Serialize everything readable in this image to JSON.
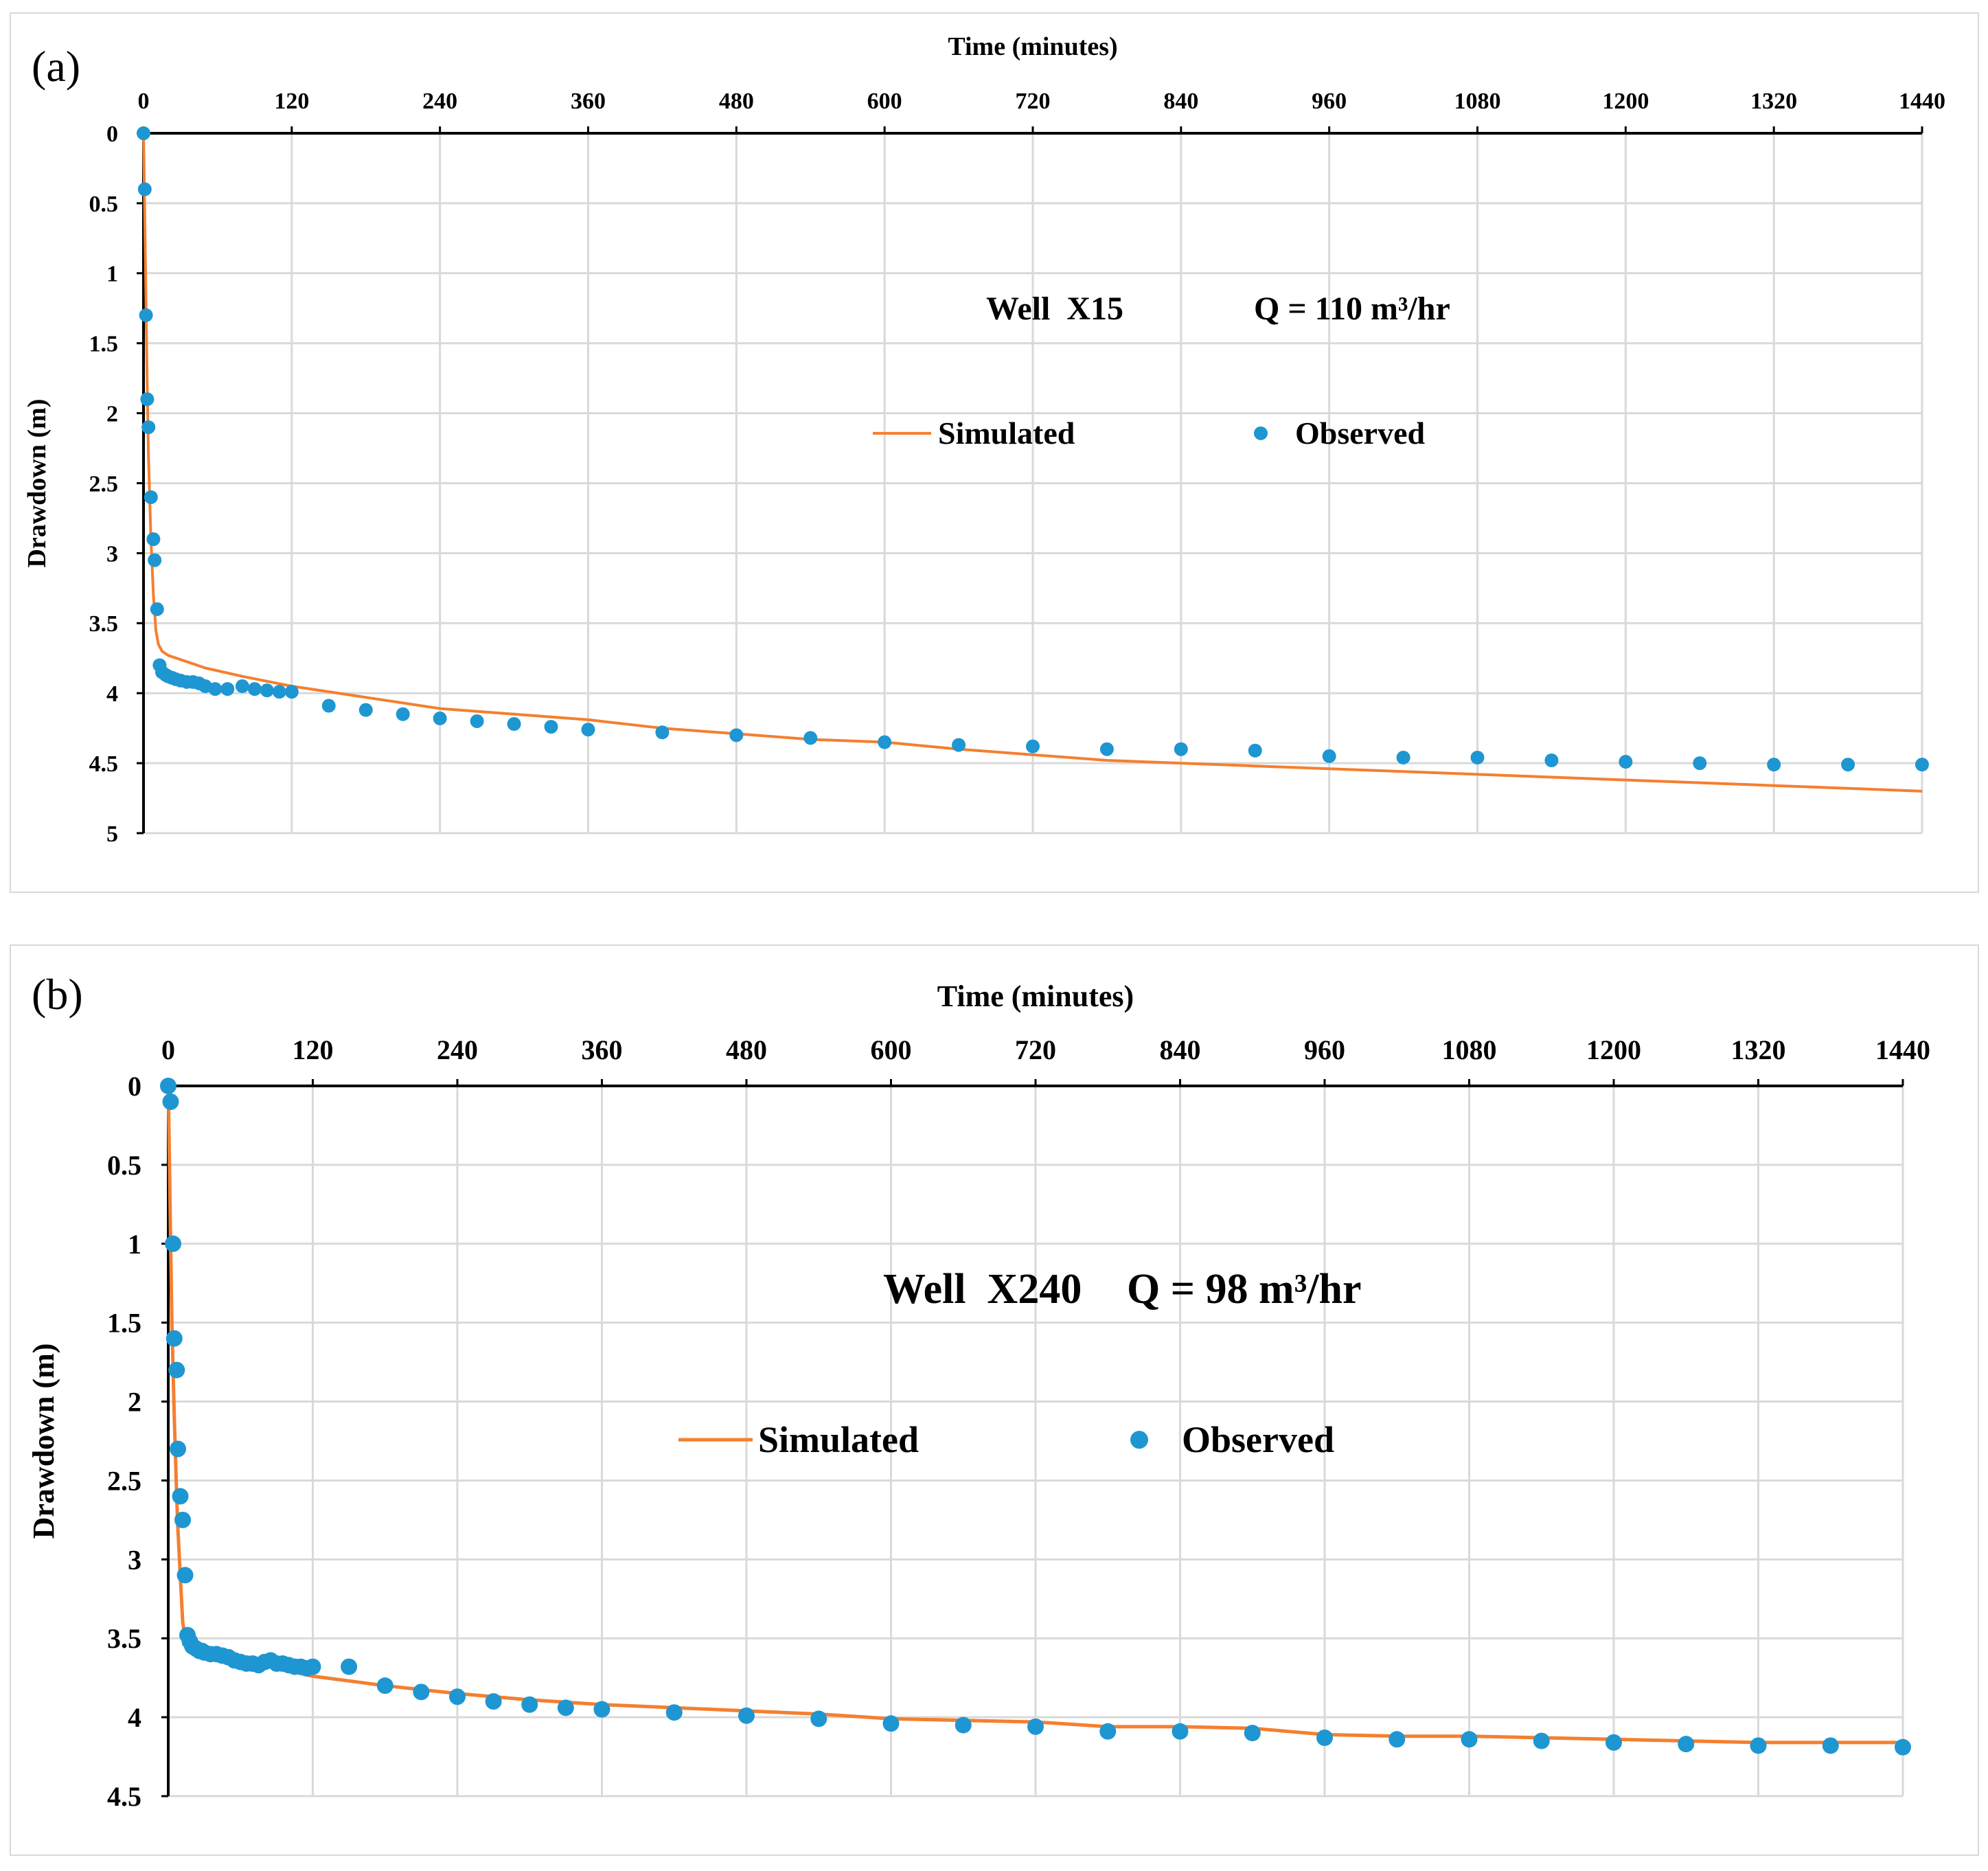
{
  "colors": {
    "simulated": "#f47f2f",
    "observed": "#1e96d2",
    "grid": "#d9d9d9",
    "axis": "#000000"
  },
  "chart_data": [
    {
      "id": "a",
      "panel_label": "(a)",
      "type": "line+scatter",
      "title": "",
      "xlabel": "Time (minutes)",
      "ylabel": "Drawdown (m)",
      "xlim": [
        0,
        1440
      ],
      "ylim": [
        0,
        5
      ],
      "x_ticks": [
        0,
        120,
        240,
        360,
        480,
        600,
        720,
        840,
        960,
        1080,
        1200,
        1320,
        1440
      ],
      "y_ticks": [
        0,
        0.5,
        1,
        1.5,
        2,
        2.5,
        3,
        3.5,
        4,
        4.5,
        5
      ],
      "y_tick_labels": [
        "0",
        "0.5",
        "1",
        "1.5",
        "2",
        "2.5",
        "3",
        "3.5",
        "4",
        "4.5",
        "5"
      ],
      "x_axis_position": "top",
      "y_axis_inverted": true,
      "grid": true,
      "annotation": {
        "well": "Well  X15",
        "discharge": "Q = 110 m³/hr"
      },
      "legend": {
        "position": "center",
        "entries": [
          "Simulated",
          "Observed"
        ]
      },
      "series": [
        {
          "name": "Simulated",
          "style": "line",
          "x": [
            0,
            1,
            2,
            3,
            4,
            6,
            8,
            10,
            12,
            15,
            20,
            30,
            50,
            80,
            120,
            180,
            240,
            300,
            360,
            420,
            480,
            540,
            600,
            660,
            720,
            780,
            840,
            900,
            960,
            1020,
            1080,
            1140,
            1200,
            1260,
            1320,
            1380,
            1440
          ],
          "y": [
            0,
            0.6,
            1.2,
            1.8,
            2.3,
            2.9,
            3.3,
            3.55,
            3.65,
            3.7,
            3.73,
            3.76,
            3.82,
            3.88,
            3.95,
            4.03,
            4.11,
            4.15,
            4.19,
            4.25,
            4.29,
            4.33,
            4.35,
            4.4,
            4.44,
            4.48,
            4.5,
            4.52,
            4.54,
            4.56,
            4.58,
            4.6,
            4.62,
            4.64,
            4.66,
            4.68,
            4.7
          ]
        },
        {
          "name": "Observed",
          "style": "scatter",
          "x": [
            0,
            1,
            2,
            3,
            4,
            6,
            8,
            9,
            11,
            13,
            15,
            18,
            20,
            23,
            26,
            30,
            35,
            40,
            45,
            50,
            58,
            68,
            80,
            90,
            100,
            110,
            120,
            150,
            180,
            210,
            240,
            270,
            300,
            330,
            360,
            420,
            480,
            540,
            600,
            660,
            720,
            780,
            840,
            900,
            960,
            1020,
            1080,
            1140,
            1200,
            1260,
            1320,
            1380,
            1440
          ],
          "y": [
            0,
            0.4,
            1.3,
            1.9,
            2.1,
            2.6,
            2.9,
            3.05,
            3.4,
            3.8,
            3.85,
            3.87,
            3.88,
            3.89,
            3.9,
            3.91,
            3.92,
            3.92,
            3.93,
            3.95,
            3.97,
            3.97,
            3.95,
            3.97,
            3.98,
            3.99,
            3.99,
            4.09,
            4.12,
            4.15,
            4.18,
            4.2,
            4.22,
            4.24,
            4.26,
            4.28,
            4.3,
            4.32,
            4.35,
            4.37,
            4.38,
            4.4,
            4.4,
            4.41,
            4.45,
            4.46,
            4.46,
            4.48,
            4.49,
            4.5,
            4.51,
            4.51,
            4.51
          ]
        }
      ]
    },
    {
      "id": "b",
      "panel_label": "(b)",
      "type": "line+scatter",
      "title": "",
      "xlabel": "Time (minutes)",
      "ylabel": "Drawdown (m)",
      "xlim": [
        0,
        1440
      ],
      "ylim": [
        0,
        4.5
      ],
      "x_ticks": [
        0,
        120,
        240,
        360,
        480,
        600,
        720,
        840,
        960,
        1080,
        1200,
        1320,
        1440
      ],
      "y_ticks": [
        0,
        0.5,
        1,
        1.5,
        2,
        2.5,
        3,
        3.5,
        4,
        4.5
      ],
      "y_tick_labels": [
        "0",
        "0.5",
        "1",
        "1.5",
        "2",
        "2.5",
        "3",
        "3.5",
        "4",
        "4.5"
      ],
      "x_axis_position": "top",
      "y_axis_inverted": true,
      "grid": true,
      "annotation": {
        "well": "Well  X240",
        "discharge": "Q = 98 m³/hr"
      },
      "legend": {
        "position": "center",
        "entries": [
          "Simulated",
          "Observed"
        ]
      },
      "series": [
        {
          "name": "Simulated",
          "style": "line",
          "x": [
            0,
            1,
            2,
            3,
            5,
            7,
            8,
            10,
            12,
            15,
            20,
            30,
            50,
            80,
            120,
            180,
            240,
            300,
            360,
            420,
            480,
            540,
            600,
            660,
            720,
            780,
            840,
            900,
            960,
            1020,
            1080,
            1140,
            1200,
            1260,
            1320,
            1380,
            1440
          ],
          "y": [
            0,
            0.5,
            1.0,
            1.5,
            2.1,
            2.6,
            2.8,
            3.1,
            3.4,
            3.53,
            3.57,
            3.6,
            3.63,
            3.67,
            3.74,
            3.8,
            3.85,
            3.89,
            3.92,
            3.94,
            3.96,
            3.98,
            4.01,
            4.02,
            4.03,
            4.06,
            4.06,
            4.07,
            4.11,
            4.12,
            4.12,
            4.13,
            4.14,
            4.15,
            4.16,
            4.16,
            4.16
          ]
        },
        {
          "name": "Observed",
          "style": "scatter",
          "x": [
            0,
            2,
            4,
            5,
            7,
            8,
            10,
            12,
            14,
            16,
            18,
            20,
            22,
            24,
            26,
            28,
            30,
            35,
            40,
            45,
            50,
            55,
            60,
            65,
            70,
            75,
            80,
            85,
            90,
            95,
            100,
            105,
            110,
            115,
            120,
            150,
            180,
            210,
            240,
            270,
            300,
            330,
            360,
            420,
            480,
            540,
            600,
            660,
            720,
            780,
            840,
            900,
            960,
            1020,
            1080,
            1140,
            1200,
            1260,
            1320,
            1380,
            1440
          ],
          "y": [
            0,
            0.1,
            1.0,
            1.6,
            1.8,
            2.3,
            2.6,
            2.75,
            3.1,
            3.48,
            3.52,
            3.55,
            3.56,
            3.57,
            3.58,
            3.58,
            3.59,
            3.6,
            3.6,
            3.61,
            3.62,
            3.64,
            3.65,
            3.66,
            3.66,
            3.67,
            3.65,
            3.64,
            3.66,
            3.66,
            3.67,
            3.68,
            3.68,
            3.69,
            3.68,
            3.68,
            3.8,
            3.84,
            3.87,
            3.9,
            3.92,
            3.94,
            3.95,
            3.97,
            3.99,
            4.01,
            4.04,
            4.05,
            4.06,
            4.09,
            4.09,
            4.1,
            4.13,
            4.14,
            4.14,
            4.15,
            4.16,
            4.17,
            4.18,
            4.18,
            4.19
          ]
        }
      ]
    }
  ]
}
